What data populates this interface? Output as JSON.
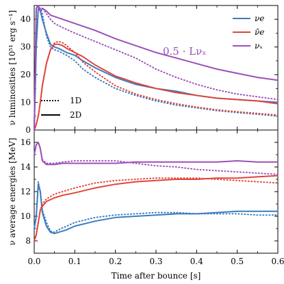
{
  "colors": {
    "nu_e": "#3b7bbf",
    "nubar_e": "#e0453a",
    "nu_x": "#9b4fb8"
  },
  "chart_data": [
    {
      "type": "line",
      "ylabel": "ν luminosities [10⁵¹ erg s⁻¹]",
      "xlim": [
        0,
        0.6
      ],
      "ylim": [
        0,
        45
      ],
      "yticks": [
        0,
        10,
        20,
        30,
        40
      ],
      "annotation": "0.5 · Lνₓ",
      "legend": [
        {
          "label": "νe",
          "key": "nu_e"
        },
        {
          "label": "ν̄e",
          "key": "nubar_e"
        },
        {
          "label": "νₓ",
          "key": "nu_x"
        }
      ],
      "style_legend": [
        {
          "label": "1D",
          "style": "dotted"
        },
        {
          "label": "2D",
          "style": "solid"
        }
      ],
      "series": [
        {
          "key": "nu_e",
          "style": "dotted",
          "x": [
            0,
            0.005,
            0.01,
            0.015,
            0.02,
            0.03,
            0.04,
            0.05,
            0.06,
            0.08,
            0.1,
            0.12,
            0.15,
            0.2,
            0.25,
            0.3,
            0.35,
            0.4,
            0.45,
            0.5,
            0.55,
            0.6
          ],
          "y": [
            0,
            30,
            44,
            44,
            42,
            34,
            30,
            29,
            28.5,
            27,
            25,
            22,
            19,
            15,
            12.5,
            10.5,
            9,
            8,
            7,
            6.3,
            5.7,
            5
          ]
        },
        {
          "key": "nu_e",
          "style": "solid",
          "x": [
            0,
            0.005,
            0.01,
            0.015,
            0.02,
            0.03,
            0.04,
            0.05,
            0.06,
            0.08,
            0.1,
            0.12,
            0.15,
            0.2,
            0.25,
            0.3,
            0.35,
            0.4,
            0.45,
            0.5,
            0.55,
            0.6
          ],
          "y": [
            0,
            30,
            44,
            43,
            40,
            35,
            31,
            30,
            29.5,
            28,
            27,
            25,
            22.5,
            19,
            16.5,
            15,
            14,
            12.5,
            11.5,
            11,
            10.5,
            10
          ]
        },
        {
          "key": "nubar_e",
          "style": "dotted",
          "x": [
            0,
            0.005,
            0.01,
            0.015,
            0.02,
            0.03,
            0.04,
            0.05,
            0.06,
            0.07,
            0.08,
            0.1,
            0.12,
            0.15,
            0.2,
            0.25,
            0.3,
            0.35,
            0.4,
            0.45,
            0.5,
            0.55,
            0.6
          ],
          "y": [
            0,
            2,
            5,
            10,
            16,
            24,
            29,
            31.5,
            32,
            31.5,
            30.5,
            28,
            24.5,
            21,
            16,
            13,
            11,
            9.5,
            8.3,
            7.3,
            6.6,
            6,
            5.4
          ]
        },
        {
          "key": "nubar_e",
          "style": "solid",
          "x": [
            0,
            0.005,
            0.01,
            0.015,
            0.02,
            0.03,
            0.04,
            0.05,
            0.06,
            0.07,
            0.08,
            0.1,
            0.12,
            0.15,
            0.2,
            0.25,
            0.3,
            0.35,
            0.4,
            0.45,
            0.5,
            0.55,
            0.6
          ],
          "y": [
            0,
            2,
            5,
            10,
            16,
            24,
            29,
            31,
            31,
            30.5,
            29.5,
            28,
            26.5,
            23.5,
            19.5,
            17,
            15,
            13.5,
            12.5,
            11.5,
            11,
            10.5,
            9.5
          ]
        },
        {
          "key": "nu_x",
          "style": "dotted",
          "x": [
            0,
            0.005,
            0.01,
            0.015,
            0.02,
            0.03,
            0.04,
            0.05,
            0.07,
            0.1,
            0.15,
            0.2,
            0.25,
            0.3,
            0.35,
            0.4,
            0.45,
            0.5,
            0.55,
            0.6
          ],
          "y": [
            0,
            44,
            45,
            43,
            44,
            42,
            40,
            38.5,
            37,
            35,
            32,
            29,
            26,
            22,
            19,
            16.5,
            14.5,
            13,
            12,
            11
          ]
        },
        {
          "key": "nu_x",
          "style": "solid",
          "x": [
            0,
            0.005,
            0.01,
            0.015,
            0.02,
            0.03,
            0.04,
            0.05,
            0.07,
            0.1,
            0.15,
            0.2,
            0.25,
            0.3,
            0.35,
            0.4,
            0.45,
            0.5,
            0.55,
            0.6
          ],
          "y": [
            0,
            44,
            45,
            43,
            44,
            43,
            41.5,
            41,
            40,
            38.5,
            36,
            33,
            30.5,
            28,
            26,
            24,
            22,
            20.5,
            19,
            18
          ]
        }
      ]
    },
    {
      "type": "line",
      "xlabel": "Time after bounce [s]",
      "ylabel": "ν average energies [MeV]",
      "xlim": [
        0,
        0.6
      ],
      "ylim": [
        7,
        17
      ],
      "xticks": [
        0.0,
        0.1,
        0.2,
        0.3,
        0.4,
        0.5,
        0.6
      ],
      "xtick_labels": [
        "0.0",
        "0.1",
        "0.2",
        "0.3",
        "0.4",
        "0.5",
        "0.6"
      ],
      "yticks": [
        8,
        10,
        12,
        14,
        16
      ],
      "series": [
        {
          "key": "nu_e",
          "style": "dotted",
          "x": [
            0,
            0.005,
            0.01,
            0.015,
            0.02,
            0.03,
            0.04,
            0.05,
            0.06,
            0.08,
            0.1,
            0.15,
            0.2,
            0.25,
            0.3,
            0.35,
            0.4,
            0.45,
            0.5,
            0.55,
            0.6
          ],
          "y": [
            9,
            10,
            12.8,
            12,
            10.5,
            9.5,
            8.8,
            8.7,
            8.9,
            9.2,
            9.5,
            9.9,
            10.1,
            10.2,
            10.3,
            10.3,
            10.2,
            10.2,
            10.2,
            10.1,
            10.1
          ]
        },
        {
          "key": "nu_e",
          "style": "solid",
          "x": [
            0,
            0.005,
            0.01,
            0.015,
            0.02,
            0.03,
            0.04,
            0.05,
            0.06,
            0.08,
            0.1,
            0.15,
            0.2,
            0.25,
            0.3,
            0.35,
            0.4,
            0.45,
            0.5,
            0.55,
            0.6
          ],
          "y": [
            9,
            10,
            12.6,
            12,
            10.3,
            9.2,
            8.7,
            8.6,
            8.7,
            8.9,
            9.2,
            9.6,
            9.9,
            10,
            10.1,
            10.2,
            10.2,
            10.3,
            10.4,
            10.4,
            10.4
          ]
        },
        {
          "key": "nubar_e",
          "style": "dotted",
          "x": [
            0,
            0.005,
            0.01,
            0.015,
            0.02,
            0.03,
            0.05,
            0.07,
            0.1,
            0.15,
            0.2,
            0.25,
            0.3,
            0.35,
            0.4,
            0.45,
            0.5,
            0.55,
            0.6
          ],
          "y": [
            8,
            8.5,
            9.5,
            10.5,
            11,
            11.4,
            11.8,
            12,
            12.3,
            12.7,
            12.9,
            13,
            13.1,
            13.1,
            13.1,
            13,
            12.9,
            12.8,
            12.7
          ]
        },
        {
          "key": "nubar_e",
          "style": "solid",
          "x": [
            0,
            0.005,
            0.01,
            0.015,
            0.02,
            0.03,
            0.05,
            0.07,
            0.1,
            0.15,
            0.2,
            0.25,
            0.3,
            0.35,
            0.4,
            0.45,
            0.5,
            0.55,
            0.6
          ],
          "y": [
            8,
            8.5,
            9.5,
            10.5,
            10.8,
            11.2,
            11.5,
            11.7,
            11.9,
            12.3,
            12.6,
            12.8,
            12.9,
            13,
            13,
            13.1,
            13.1,
            13.2,
            13.3
          ]
        },
        {
          "key": "nu_x",
          "style": "dotted",
          "x": [
            0,
            0.005,
            0.01,
            0.015,
            0.02,
            0.03,
            0.05,
            0.07,
            0.1,
            0.15,
            0.2,
            0.25,
            0.3,
            0.35,
            0.4,
            0.45,
            0.5,
            0.55,
            0.6
          ],
          "y": [
            15,
            15.8,
            16,
            15.5,
            14.6,
            14.3,
            14.3,
            14.4,
            14.5,
            14.5,
            14.5,
            14.3,
            14.1,
            14,
            13.8,
            13.7,
            13.6,
            13.5,
            13.4
          ]
        },
        {
          "key": "nu_x",
          "style": "solid",
          "x": [
            0,
            0.005,
            0.01,
            0.015,
            0.02,
            0.03,
            0.05,
            0.07,
            0.1,
            0.15,
            0.2,
            0.25,
            0.3,
            0.35,
            0.4,
            0.45,
            0.5,
            0.55,
            0.6
          ],
          "y": [
            15,
            15.8,
            16,
            15.5,
            14.5,
            14.2,
            14.2,
            14.3,
            14.3,
            14.3,
            14.3,
            14.4,
            14.4,
            14.4,
            14.4,
            14.4,
            14.5,
            14.4,
            14.4
          ]
        }
      ]
    }
  ]
}
